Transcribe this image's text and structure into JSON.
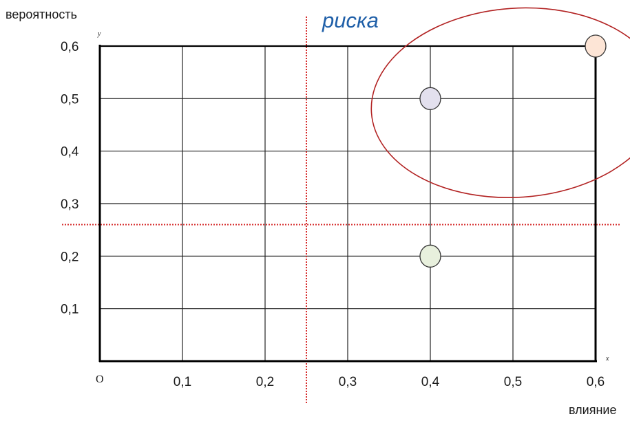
{
  "chart_data": {
    "type": "scatter",
    "title": "",
    "xlabel": "влияние",
    "ylabel": "вероятность",
    "x_axis_letter": "x",
    "y_axis_letter": "y",
    "origin_label": "O",
    "xlim": [
      0,
      0.6
    ],
    "ylim": [
      0,
      0.6
    ],
    "grid": true,
    "x_ticks": [
      "0,1",
      "0,2",
      "0,3",
      "0,4",
      "0,5",
      "0,6"
    ],
    "y_ticks": [
      "0,1",
      "0,2",
      "0,3",
      "0,4",
      "0,5",
      "0,6"
    ],
    "x_tick_values": [
      0.1,
      0.2,
      0.3,
      0.4,
      0.5,
      0.6
    ],
    "y_tick_values": [
      0.1,
      0.2,
      0.3,
      0.4,
      0.5,
      0.6
    ],
    "points": [
      {
        "x": 0.6,
        "y": 0.6,
        "color": "#fde5d6"
      },
      {
        "x": 0.4,
        "y": 0.5,
        "color": "#e3e0ee"
      },
      {
        "x": 0.4,
        "y": 0.2,
        "color": "#e8f0dd"
      }
    ],
    "threshold_lines": [
      {
        "orientation": "vertical",
        "x": 0.25,
        "color": "#d62b2b"
      },
      {
        "orientation": "horizontal",
        "y": 0.26,
        "color": "#d62b2b"
      }
    ],
    "annotation": {
      "text": "риска",
      "color": "#1f5fa8"
    },
    "highlight_ellipse": {
      "cx": 0.5,
      "cy": 0.5,
      "rx": 0.17,
      "ry": 0.18,
      "color": "#b22222"
    }
  }
}
